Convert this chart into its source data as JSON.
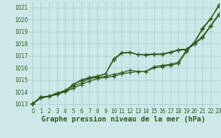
{
  "title": "Graphe pression niveau de la mer (hPa)",
  "bg_color": "#cce8e8",
  "grid_color": "#a0c8c8",
  "line_color": "#2d5a1b",
  "xlim": [
    -0.5,
    23
  ],
  "ylim": [
    1012.7,
    1021.5
  ],
  "yticks": [
    1013,
    1014,
    1015,
    1016,
    1017,
    1018,
    1019,
    1020,
    1021
  ],
  "xticks": [
    0,
    1,
    2,
    3,
    4,
    5,
    6,
    7,
    8,
    9,
    10,
    11,
    12,
    13,
    14,
    15,
    16,
    17,
    18,
    19,
    20,
    21,
    22,
    23
  ],
  "line1": [
    1013.0,
    1013.5,
    1013.6,
    1013.8,
    1014.0,
    1014.3,
    1014.6,
    1014.9,
    1015.1,
    1015.2,
    1015.3,
    1015.5,
    1015.6,
    1015.7,
    1015.7,
    1016.0,
    1016.1,
    1016.2,
    1016.35,
    1017.35,
    1018.1,
    1019.2,
    1020.05,
    1021.2
  ],
  "line2": [
    1013.05,
    1013.55,
    1013.65,
    1013.85,
    1014.05,
    1014.45,
    1014.75,
    1015.1,
    1015.2,
    1015.3,
    1015.45,
    1015.6,
    1015.8,
    1015.7,
    1015.7,
    1016.1,
    1016.2,
    1016.3,
    1016.45,
    1017.45,
    1018.15,
    1019.3,
    1020.1,
    1021.1
  ],
  "line3": [
    1013.05,
    1013.55,
    1013.65,
    1013.9,
    1014.1,
    1014.6,
    1014.95,
    1015.15,
    1015.3,
    1015.5,
    1016.65,
    1017.2,
    1017.25,
    1017.1,
    1017.05,
    1017.1,
    1017.1,
    1017.25,
    1017.45,
    1017.5,
    1017.95,
    1018.5,
    1019.45,
    1020.35
  ],
  "line4": [
    1013.05,
    1013.6,
    1013.65,
    1013.92,
    1014.12,
    1014.62,
    1015.0,
    1015.2,
    1015.32,
    1015.5,
    1016.75,
    1017.25,
    1017.3,
    1017.1,
    1017.1,
    1017.15,
    1017.15,
    1017.3,
    1017.5,
    1017.55,
    1018.05,
    1018.6,
    1019.5,
    1020.45
  ],
  "marker": "+",
  "markersize": 4,
  "linewidth": 0.9,
  "title_fontsize": 7.5,
  "tick_fontsize": 5.5
}
